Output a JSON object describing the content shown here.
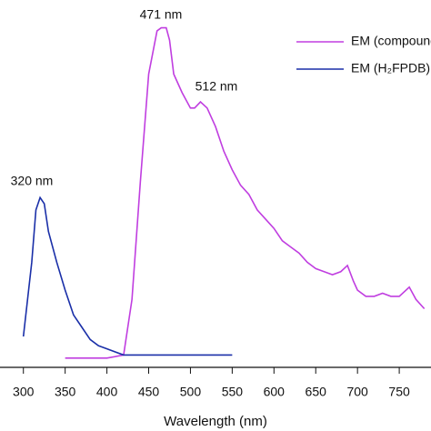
{
  "chart_data": {
    "type": "line",
    "x_label": "Wavelength (nm)",
    "annotations": [
      "320 nm",
      "471 nm",
      "512 nm"
    ],
    "xlim": [
      272,
      788
    ],
    "xticks": [
      300,
      350,
      400,
      450,
      500,
      550,
      600,
      650,
      700,
      750
    ],
    "ylim": [
      0,
      1.19
    ],
    "legend": "upper right",
    "series": [
      {
        "name": "EM (compound",
        "color": "#c03ee0",
        "x": [
          350,
          400,
          420,
          430,
          440,
          450,
          460,
          465,
          471,
          475,
          480,
          490,
          500,
          505,
          512,
          520,
          530,
          540,
          550,
          560,
          570,
          580,
          590,
          600,
          610,
          620,
          630,
          640,
          650,
          660,
          670,
          680,
          688,
          695,
          700,
          710,
          720,
          730,
          740,
          750,
          762,
          770,
          780
        ],
        "values": [
          0.03,
          0.03,
          0.04,
          0.22,
          0.6,
          0.95,
          1.09,
          1.1,
          1.1,
          1.06,
          0.95,
          0.89,
          0.84,
          0.84,
          0.86,
          0.84,
          0.78,
          0.7,
          0.64,
          0.59,
          0.56,
          0.51,
          0.48,
          0.45,
          0.41,
          0.39,
          0.37,
          0.34,
          0.32,
          0.31,
          0.3,
          0.31,
          0.33,
          0.28,
          0.25,
          0.23,
          0.23,
          0.24,
          0.23,
          0.23,
          0.26,
          0.22,
          0.19
        ]
      },
      {
        "name": "EM (H₂FPDB)",
        "color": "#1a2fa8",
        "x": [
          300,
          310,
          315,
          320,
          325,
          330,
          340,
          350,
          360,
          370,
          380,
          390,
          400,
          420,
          450,
          500,
          550
        ],
        "values": [
          0.1,
          0.34,
          0.51,
          0.55,
          0.53,
          0.44,
          0.34,
          0.25,
          0.17,
          0.13,
          0.09,
          0.07,
          0.06,
          0.04,
          0.04,
          0.04,
          0.04
        ]
      }
    ]
  }
}
